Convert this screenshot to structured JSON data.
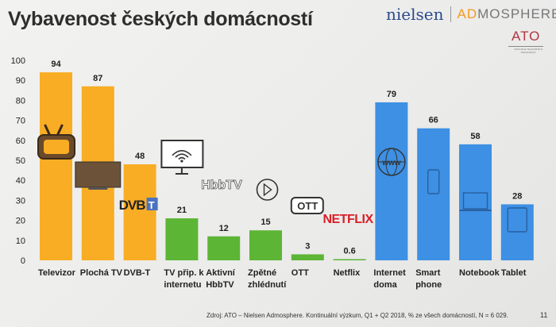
{
  "slide": {
    "title": "Vybavenost českých domácností",
    "logos": {
      "nielsen": "nielsen",
      "admosphere_a": "AD",
      "admosphere_b": "MOSPHERE",
      "ato": "ATO",
      "ato_sub": "ASOCIACE TELEVIZNÍCH ORGANIZACÍ"
    },
    "footer": "Zdroj: ATO – Nielsen Admosphere. Kontinuální výzkum, Q1 + Q2 2018, % ze všech domácností, N = 6 029.",
    "page_number": "11"
  },
  "colors": {
    "orange": "#f9ad24",
    "green": "#5db536",
    "blue": "#3d90e3"
  },
  "chart_data": {
    "type": "bar",
    "title": "Vybavenost českých domácností",
    "xlabel": "",
    "ylabel": "",
    "ylim": [
      0,
      100
    ],
    "yticks": [
      0,
      10,
      20,
      30,
      40,
      50,
      60,
      70,
      80,
      90,
      100
    ],
    "categories": [
      [
        "Televizor"
      ],
      [
        "Plochá TV"
      ],
      [
        "DVB-T"
      ],
      [
        "TV přip. k",
        "internetu"
      ],
      [
        "Aktivní",
        "HbbTV"
      ],
      [
        "Zpětné",
        "zhlédnutí"
      ],
      [
        "OTT"
      ],
      [
        "Netflix"
      ],
      [
        "Internet",
        "doma"
      ],
      [
        "Smart",
        "phone"
      ],
      [
        "Notebook"
      ],
      [
        "Tablet"
      ]
    ],
    "values": [
      94,
      87,
      48,
      21,
      12,
      15,
      3,
      0.6,
      79,
      66,
      58,
      28
    ],
    "value_labels": [
      "94",
      "87",
      "48",
      "21",
      "12",
      "15",
      "3",
      "0.6",
      "79",
      "66",
      "58",
      "28"
    ],
    "groups": [
      "orange",
      "orange",
      "orange",
      "green",
      "green",
      "green",
      "green",
      "green",
      "blue",
      "blue",
      "blue",
      "blue"
    ],
    "icons": [
      "tv-icon",
      "flat-tv-icon",
      "dvbt-logo",
      "wifi-monitor-icon",
      "hbbtv-logo",
      "replay-icon",
      "ott-logo",
      "netflix-logo",
      "globe-www-icon",
      "smartphone-icon",
      "laptop-icon",
      "tablet-icon"
    ],
    "logo_text": {
      "dvbt": "DVB",
      "dvbt_t": "T",
      "hbbtv": "HbbTV",
      "ott": "OTT",
      "netflix": "NETFLIX",
      "www": "www"
    },
    "grid": false,
    "legend": "none"
  }
}
